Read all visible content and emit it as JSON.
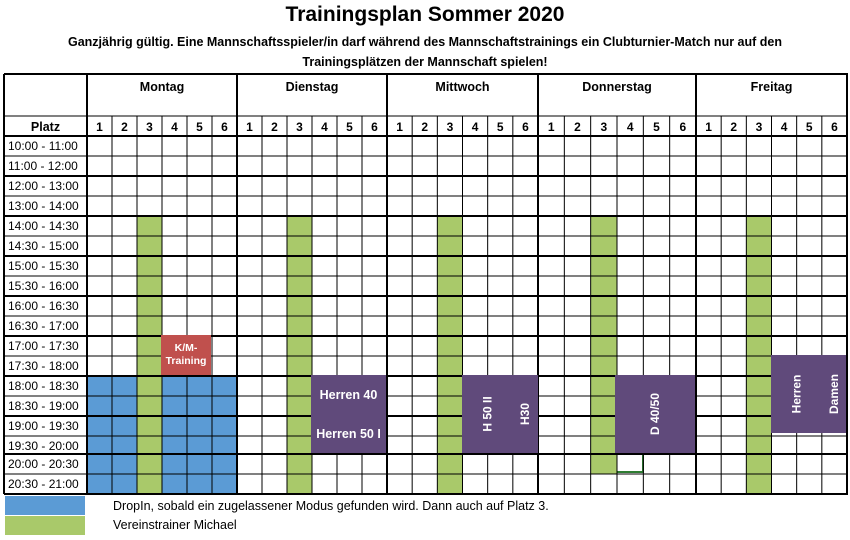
{
  "title": "Trainingsplan Sommer 2020",
  "subtitle": "Ganzjährig gültig. Eine Mannschaftsspieler/in darf während des Mannschaftstrainings ein Clubturnier-Match nur auf den Trainingsplätzen der Mannschaft spielen!",
  "platz_label": "Platz",
  "days": [
    "Montag",
    "Dienstag",
    "Mittwoch",
    "Donnerstag",
    "Freitag"
  ],
  "court_numbers": [
    "1",
    "2",
    "3",
    "4",
    "5",
    "6"
  ],
  "times": [
    "10:00 - 11:00",
    "11:00 - 12:00",
    "12:00 - 13:00",
    "13:00 - 14:00",
    "14:00 - 14:30",
    "14:30 - 15:00",
    "15:00 - 15:30",
    "15:30 - 16:00",
    "16:00 - 16:30",
    "16:30 - 17:00",
    "17:00 - 17:30",
    "17:30 - 18:00",
    "18:00 - 18:30",
    "18:30 - 19:00",
    "19:00 - 19:30",
    "19:30 - 20:00",
    "20:00 - 20:30",
    "20:30 - 21:00"
  ],
  "blocks": {
    "km_training": "K/M-Training",
    "herren_40": "Herren 40",
    "herren_50": "Herren 50 I",
    "h50_ii": "H 50 II",
    "h30": "H30",
    "d4050": "D 40/50",
    "herren": "Herren",
    "damen": "Damen"
  },
  "legend": {
    "blue": "DropIn, sobald ein zugelassener Modus gefunden wird. Dann auch auf Platz 3.",
    "green": "Vereinstrainer Michael"
  },
  "colors": {
    "blue": "#5b9bd5",
    "green": "#a9c96a",
    "purple": "#604a7b",
    "red": "#c0504d"
  }
}
